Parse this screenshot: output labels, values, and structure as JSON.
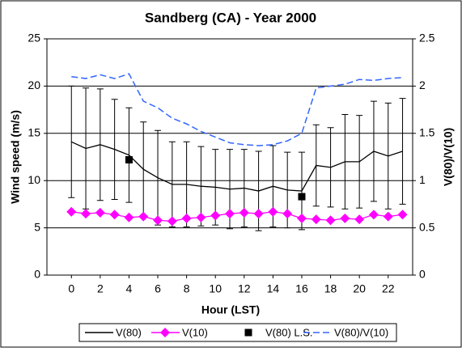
{
  "chart_data": {
    "type": "line",
    "title": "Sandberg (CA) - Year 2000",
    "x_label": "Hour (LST)",
    "y_label": "Wind speed (m/s)",
    "y2_label": "V(80)/V(10)",
    "x": [
      0,
      1,
      2,
      3,
      4,
      5,
      6,
      7,
      8,
      9,
      10,
      11,
      12,
      13,
      14,
      15,
      16,
      17,
      18,
      19,
      20,
      21,
      22,
      23
    ],
    "xlim": [
      -1.7,
      23.7
    ],
    "xticks": [
      0,
      2,
      4,
      6,
      8,
      10,
      12,
      14,
      16,
      18,
      20,
      22
    ],
    "ylim": [
      0,
      25
    ],
    "yticks": [
      0,
      5,
      10,
      15,
      20,
      25
    ],
    "y2lim": [
      0,
      2.5
    ],
    "y2ticks": [
      0,
      0.5,
      1,
      1.5,
      2,
      2.5
    ],
    "grid": true,
    "legend": "bottom",
    "series": [
      {
        "name": "V(80)",
        "color": "#000000",
        "line": "solid",
        "marker": "none",
        "values": [
          14.1,
          13.4,
          13.8,
          13.3,
          12.7,
          11.2,
          10.3,
          9.6,
          9.6,
          9.4,
          9.3,
          9.1,
          9.2,
          8.9,
          9.4,
          9.0,
          8.9,
          11.6,
          11.4,
          12.0,
          12.0,
          13.1,
          12.6,
          13.1
        ],
        "errors": [
          5.9,
          6.4,
          5.9,
          5.3,
          5.0,
          5.0,
          5.0,
          4.5,
          4.5,
          4.2,
          4.0,
          4.2,
          4.1,
          4.2,
          4.3,
          4.0,
          4.1,
          4.3,
          4.2,
          5.0,
          4.9,
          5.3,
          5.6,
          5.6
        ]
      },
      {
        "name": "V(10)",
        "color": "#ff00ff",
        "line": "solid",
        "marker": "diamond",
        "values": [
          6.7,
          6.5,
          6.6,
          6.4,
          6.1,
          6.2,
          5.8,
          5.7,
          6.0,
          6.1,
          6.3,
          6.5,
          6.6,
          6.5,
          6.7,
          6.5,
          6.0,
          5.9,
          5.8,
          6.0,
          5.9,
          6.4,
          6.2,
          6.4
        ]
      },
      {
        "name": "V(80) L.S.",
        "color": "#000000",
        "line": "none",
        "marker": "square",
        "values": [
          null,
          null,
          null,
          null,
          12.2,
          null,
          null,
          null,
          null,
          null,
          null,
          null,
          null,
          null,
          null,
          null,
          8.3,
          null,
          null,
          null,
          null,
          null,
          null,
          null
        ]
      },
      {
        "name": "V(80)/V(10)",
        "color": "#3366ff",
        "line": "dashed",
        "marker": "none",
        "axis": "y2",
        "values": [
          2.1,
          2.08,
          2.12,
          2.08,
          2.13,
          1.84,
          1.77,
          1.66,
          1.6,
          1.52,
          1.46,
          1.4,
          1.38,
          1.37,
          1.38,
          1.42,
          1.5,
          1.98,
          2.0,
          2.02,
          2.07,
          2.06,
          2.08,
          2.09
        ]
      }
    ]
  }
}
